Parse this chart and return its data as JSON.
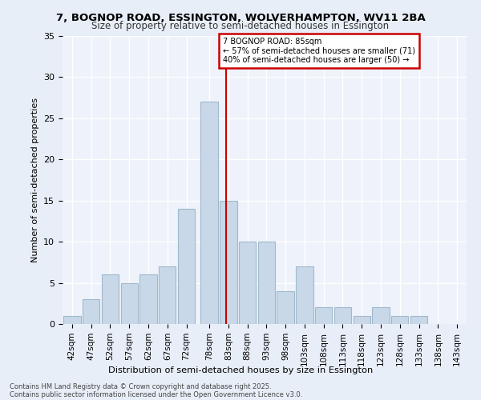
{
  "title1": "7, BOGNOP ROAD, ESSINGTON, WOLVERHAMPTON, WV11 2BA",
  "title2": "Size of property relative to semi-detached houses in Essington",
  "xlabel": "Distribution of semi-detached houses by size in Essington",
  "ylabel": "Number of semi-detached properties",
  "footer1": "Contains HM Land Registry data © Crown copyright and database right 2025.",
  "footer2": "Contains public sector information licensed under the Open Government Licence v3.0.",
  "annotation_title": "7 BOGNOP ROAD: 85sqm",
  "annotation_line1": "← 57% of semi-detached houses are smaller (71)",
  "annotation_line2": "40% of semi-detached houses are larger (50) →",
  "property_size": 85,
  "bin_size": 5,
  "bar_color": "#c8d8e8",
  "bar_edge_color": "#a0b8cc",
  "vline_color": "#cc0000",
  "annotation_box_color": "#cc0000",
  "bg_color": "#e8eef8",
  "plot_bg_color": "#eef2fa",
  "grid_color": "#ffffff",
  "categories": [
    "42sqm",
    "47sqm",
    "52sqm",
    "57sqm",
    "62sqm",
    "67sqm",
    "72sqm",
    "78sqm",
    "83sqm",
    "88sqm",
    "93sqm",
    "98sqm",
    "103sqm",
    "108sqm",
    "113sqm",
    "118sqm",
    "123sqm",
    "128sqm",
    "133sqm",
    "138sqm",
    "143sqm"
  ],
  "counts": [
    1,
    3,
    6,
    5,
    6,
    7,
    14,
    27,
    15,
    10,
    10,
    4,
    7,
    2,
    2,
    1,
    2,
    1,
    1,
    0
  ],
  "bar_left_edges": [
    42,
    47,
    52,
    57,
    62,
    67,
    72,
    78,
    83,
    88,
    93,
    98,
    103,
    108,
    113,
    118,
    123,
    128,
    133,
    138
  ],
  "xlim": [
    42,
    148
  ],
  "ylim": [
    0,
    35
  ],
  "yticks": [
    0,
    5,
    10,
    15,
    20,
    25,
    30,
    35
  ]
}
